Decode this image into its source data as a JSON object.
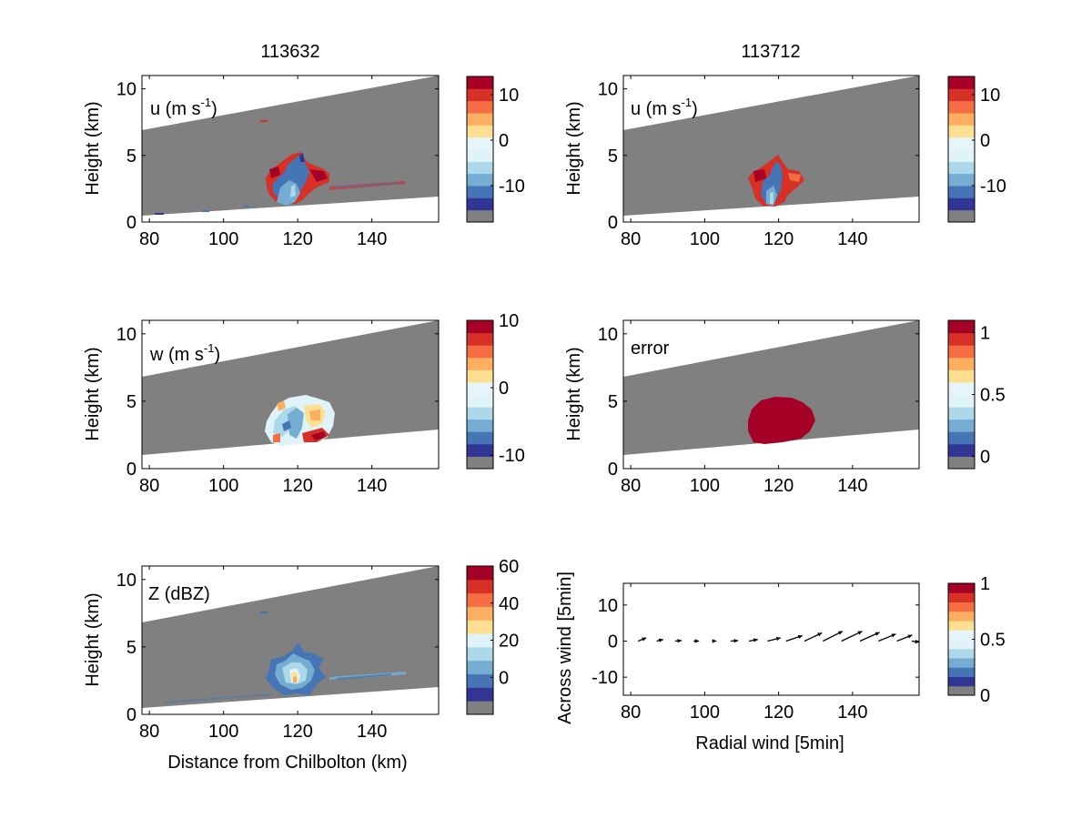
{
  "columns": [
    "113632",
    "113712"
  ],
  "colors": {
    "empty": "#808080",
    "cb10": [
      "#313695",
      "#4575b4",
      "#74add1",
      "#abd9e9",
      "#e0f3f8",
      "#fee090",
      "#fdae61",
      "#f46d43",
      "#d73027",
      "#a50026"
    ],
    "cb11": [
      "#313695",
      "#4575b4",
      "#74add1",
      "#abd9e9",
      "#e0f3f8",
      "#e6f5fb",
      "#fee090",
      "#fdae61",
      "#f46d43",
      "#d73027",
      "#a50026"
    ]
  },
  "chart_data": [
    {
      "id": "u-113632",
      "type": "heatmap",
      "panel_label": "u (m s",
      "panel_label_sup": "-1",
      "panel_label_end": ")",
      "title": "113632",
      "xlabel": "",
      "ylabel": "Height (km)",
      "xlim": [
        78,
        158
      ],
      "ylim": [
        0,
        11
      ],
      "xticks": [
        "80",
        "100",
        "120",
        "140"
      ],
      "yticks": [
        "0",
        "5",
        "10"
      ],
      "colorbar": {
        "ticks": [
          "10",
          "0",
          "-10"
        ],
        "tick_values": [
          10,
          0,
          -10
        ],
        "range": [
          -18,
          14
        ],
        "scheme": "cb11"
      },
      "features": "updraft core around 120 km, 1-5 km height; red outflow 110-130 km; scattered returns to 150 km near 2.5 km"
    },
    {
      "id": "u-113712",
      "type": "heatmap",
      "panel_label": "u (m s",
      "panel_label_sup": "-1",
      "panel_label_end": ")",
      "title": "113712",
      "xlabel": "",
      "ylabel": "Height (km)",
      "xlim": [
        78,
        158
      ],
      "ylim": [
        0,
        11
      ],
      "xticks": [
        "80",
        "100",
        "120",
        "140"
      ],
      "yticks": [
        "0",
        "5",
        "10"
      ],
      "colorbar": {
        "ticks": [
          "10",
          "0",
          "-10"
        ],
        "tick_values": [
          10,
          0,
          -10
        ],
        "range": [
          -18,
          14
        ],
        "scheme": "cb11"
      },
      "features": "smaller cell around 120 km, 1-5 km height"
    },
    {
      "id": "w",
      "type": "heatmap",
      "panel_label": "w (m s",
      "panel_label_sup": "-1",
      "panel_label_end": ")",
      "xlabel": "",
      "ylabel": "Height (km)",
      "xlim": [
        78,
        158
      ],
      "ylim": [
        0,
        11
      ],
      "xticks": [
        "80",
        "100",
        "120",
        "140"
      ],
      "yticks": [
        "0",
        "5",
        "10"
      ],
      "colorbar": {
        "ticks": [
          "10",
          "0",
          "-10"
        ],
        "tick_values": [
          10,
          0,
          -10
        ],
        "range": [
          -12,
          10
        ],
        "scheme": "cb11"
      },
      "features": "retrieved region 112-130 km, 2-5.5 km height"
    },
    {
      "id": "error",
      "type": "heatmap",
      "panel_label": "error",
      "xlabel": "",
      "ylabel": "Height (km)",
      "xlim": [
        78,
        158
      ],
      "ylim": [
        0,
        11
      ],
      "xticks": [
        "80",
        "100",
        "120",
        "140"
      ],
      "yticks": [
        "0",
        "5",
        "10"
      ],
      "colorbar": {
        "ticks": [
          "1",
          "0.5",
          "0"
        ],
        "tick_values": [
          1,
          0.5,
          0
        ],
        "range": [
          -0.1,
          1.1
        ],
        "scheme": "cb11"
      },
      "features": "error of about 1 over the retrieved region 112-130 km"
    },
    {
      "id": "Z",
      "type": "heatmap",
      "panel_label": "Z (dBZ)",
      "xlabel": "Distance from Chilbolton (km)",
      "ylabel": "Height (km)",
      "xlim": [
        78,
        158
      ],
      "ylim": [
        0,
        11
      ],
      "xticks": [
        "80",
        "100",
        "120",
        "140"
      ],
      "yticks": [
        "0",
        "5",
        "10"
      ],
      "colorbar": {
        "ticks": [
          "60",
          "40",
          "20",
          "0"
        ],
        "tick_values": [
          60,
          40,
          20,
          0
        ],
        "range": [
          -20,
          60
        ],
        "scheme": "cb10"
      },
      "features": "reflectivity core around 120 km, peak above 40 dBZ near 2.5 km"
    },
    {
      "id": "quiver",
      "type": "scatter",
      "subtype": "quiver",
      "xlabel": "Radial wind [5min]",
      "ylabel": "Across wind [5min]",
      "xlim": [
        78,
        158
      ],
      "ylim": [
        -15,
        16
      ],
      "xticks": [
        "80",
        "100",
        "120",
        "140"
      ],
      "yticks": [
        "-10",
        "0",
        "10"
      ],
      "colorbar": {
        "ticks": [
          "1",
          "0.5",
          "0"
        ],
        "tick_values": [
          1,
          0.5,
          0
        ],
        "range": [
          0,
          1
        ],
        "scheme": "cb11"
      },
      "arrows": [
        {
          "x": 82,
          "u": 1.5,
          "v": 0.6
        },
        {
          "x": 87,
          "u": 1.2,
          "v": 0.3
        },
        {
          "x": 92,
          "u": 1.2,
          "v": 0.1
        },
        {
          "x": 97,
          "u": 1.0,
          "v": 0.0
        },
        {
          "x": 102,
          "u": 0.8,
          "v": 0.0
        },
        {
          "x": 107,
          "u": 1.4,
          "v": 0.1
        },
        {
          "x": 112,
          "u": 1.6,
          "v": 0.3
        },
        {
          "x": 117,
          "u": 2.4,
          "v": 0.6
        },
        {
          "x": 122,
          "u": 3.0,
          "v": 1.0
        },
        {
          "x": 127,
          "u": 3.2,
          "v": 1.5
        },
        {
          "x": 132,
          "u": 3.6,
          "v": 1.8
        },
        {
          "x": 137,
          "u": 3.8,
          "v": 1.8
        },
        {
          "x": 142,
          "u": 3.6,
          "v": 1.6
        },
        {
          "x": 147,
          "u": 3.2,
          "v": 1.3
        },
        {
          "x": 152,
          "u": 2.8,
          "v": 1.1
        },
        {
          "x": 156,
          "u": 1.4,
          "v": -0.2
        }
      ]
    }
  ]
}
